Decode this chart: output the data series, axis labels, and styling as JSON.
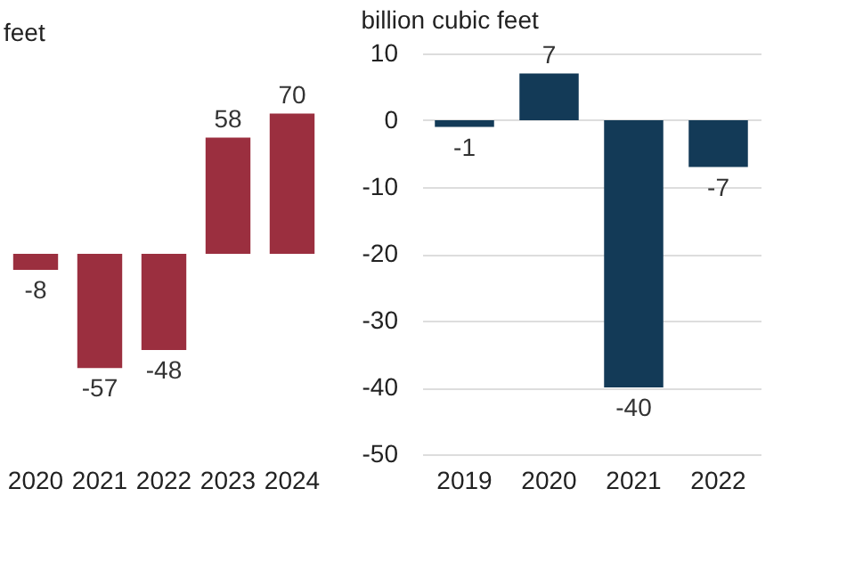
{
  "chart_data": [
    {
      "type": "bar",
      "title": "feet",
      "categories": [
        "2020",
        "2021",
        "2022",
        "2023",
        "2024"
      ],
      "values": [
        -8,
        -57,
        -48,
        58,
        70
      ],
      "color": "#9b2f3f",
      "data_labels": true,
      "tick_labels": "x",
      "grid": false
    },
    {
      "type": "bar",
      "title": "billion cubic feet",
      "categories": [
        "2019",
        "2020",
        "2021",
        "2022"
      ],
      "values": [
        -1,
        7,
        -40,
        -7
      ],
      "color": "#133a57",
      "ylim": [
        -50,
        10
      ],
      "yticks": [
        10,
        0,
        -10,
        -20,
        -30,
        -40,
        -50
      ],
      "data_labels": true,
      "grid": "y"
    }
  ]
}
